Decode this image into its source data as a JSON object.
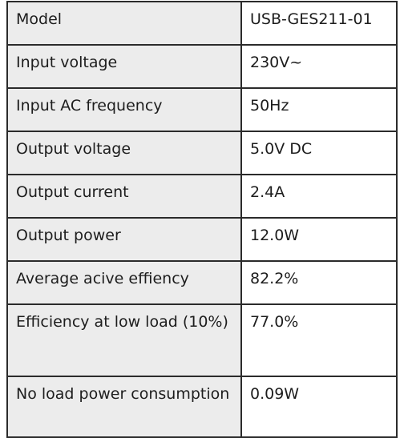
{
  "specs": {
    "rows": [
      {
        "label": "Model",
        "value": "USB-GES211-01"
      },
      {
        "label": "Input voltage",
        "value": "230V~"
      },
      {
        "label": "Input AC frequency",
        "value": "50Hz"
      },
      {
        "label": "Output voltage",
        "value": "5.0V DC"
      },
      {
        "label": "Output current",
        "value": "2.4A"
      },
      {
        "label": "Output power",
        "value": "12.0W"
      },
      {
        "label": "Average acive effiency",
        "value": "82.2%"
      },
      {
        "label": "Efficiency at low load (10%)",
        "value": "77.0%"
      },
      {
        "label": "No load power consumption",
        "value": "0.09W"
      }
    ]
  },
  "colors": {
    "label_bg": "#ececec",
    "value_bg": "#ffffff",
    "border": "#2b2b2b",
    "text": "#1d1d1d"
  }
}
